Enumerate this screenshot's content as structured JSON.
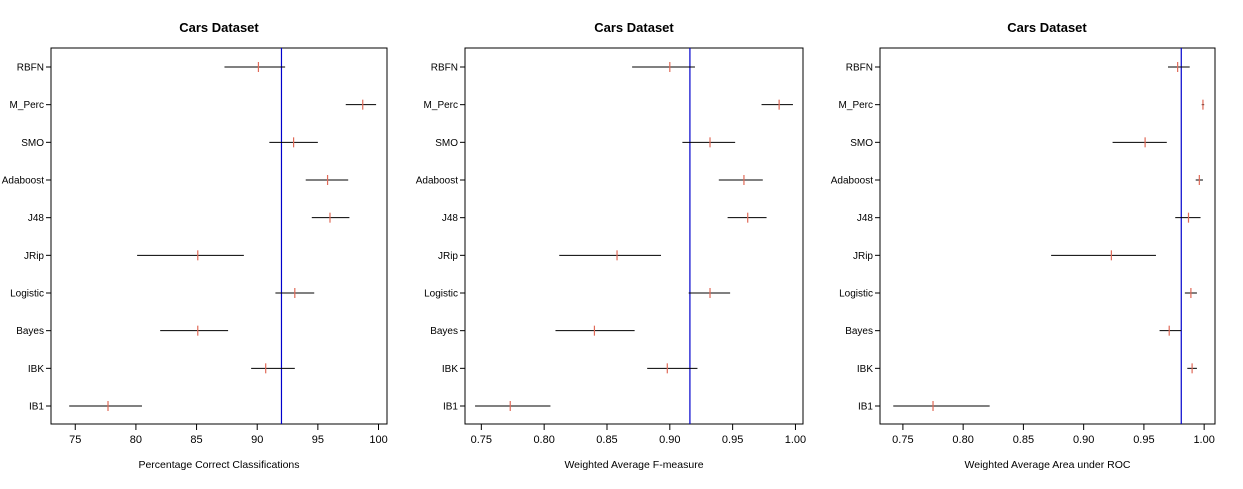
{
  "chart_data": [
    {
      "type": "interval",
      "title": "Cars Dataset",
      "xlabel": "Percentage Correct Classifications",
      "ylabel": "",
      "categories": [
        "RBFN",
        "M_Perc",
        "SMO",
        "Adaboost",
        "J48",
        "JRip",
        "Logistic",
        "Bayes",
        "IBK",
        "IB1"
      ],
      "means": [
        90.1,
        98.7,
        93.0,
        95.8,
        96.0,
        85.1,
        93.1,
        85.1,
        90.7,
        77.7
      ],
      "lower": [
        87.3,
        97.3,
        91.0,
        94.0,
        94.5,
        80.1,
        91.5,
        82.0,
        89.5,
        74.5
      ],
      "upper": [
        92.3,
        99.8,
        95.0,
        97.5,
        97.6,
        88.9,
        94.7,
        87.6,
        93.1,
        80.5
      ],
      "reference_line": 92.0,
      "xlim": [
        73.0,
        100.7
      ],
      "xticks": [
        75,
        80,
        85,
        90,
        95,
        100
      ],
      "xticklabels": [
        "75",
        "80",
        "85",
        "90",
        "95",
        "100"
      ]
    },
    {
      "type": "interval",
      "title": "Cars Dataset",
      "xlabel": "Weighted Average F-measure",
      "ylabel": "",
      "categories": [
        "RBFN",
        "M_Perc",
        "SMO",
        "Adaboost",
        "J48",
        "JRip",
        "Logistic",
        "Bayes",
        "IBK",
        "IB1"
      ],
      "means": [
        0.9,
        0.987,
        0.932,
        0.959,
        0.962,
        0.858,
        0.932,
        0.84,
        0.898,
        0.773
      ],
      "lower": [
        0.87,
        0.973,
        0.91,
        0.939,
        0.946,
        0.812,
        0.915,
        0.809,
        0.882,
        0.745
      ],
      "upper": [
        0.92,
        0.998,
        0.952,
        0.974,
        0.977,
        0.893,
        0.948,
        0.872,
        0.922,
        0.805
      ],
      "reference_line": 0.916,
      "xlim": [
        0.737,
        1.006
      ],
      "xticks": [
        0.75,
        0.8,
        0.85,
        0.9,
        0.95,
        1.0
      ],
      "xticklabels": [
        "0.75",
        "0.80",
        "0.85",
        "0.90",
        "0.95",
        "1.00"
      ]
    },
    {
      "type": "interval",
      "title": "Cars Dataset",
      "xlabel": "Weighted Average Area under ROC",
      "ylabel": "",
      "categories": [
        "RBFN",
        "M_Perc",
        "SMO",
        "Adaboost",
        "J48",
        "JRip",
        "Logistic",
        "Bayes",
        "IBK",
        "IB1"
      ],
      "means": [
        0.978,
        0.999,
        0.951,
        0.996,
        0.987,
        0.923,
        0.989,
        0.971,
        0.99,
        0.775
      ],
      "lower": [
        0.97,
        0.998,
        0.924,
        0.993,
        0.976,
        0.873,
        0.984,
        0.963,
        0.986,
        0.742
      ],
      "upper": [
        0.988,
        1.0,
        0.969,
        0.999,
        0.997,
        0.96,
        0.994,
        0.981,
        0.994,
        0.822
      ],
      "reference_line": 0.981,
      "xlim": [
        0.731,
        1.009
      ],
      "xticks": [
        0.75,
        0.8,
        0.85,
        0.9,
        0.95,
        1.0
      ],
      "xticklabels": [
        "0.75",
        "0.80",
        "0.85",
        "0.90",
        "0.95",
        "1.00"
      ]
    }
  ],
  "colors": {
    "reference_line": "#0000cc",
    "mean_marker": "#e06a58",
    "interval": "#000000",
    "axis": "#000000"
  }
}
